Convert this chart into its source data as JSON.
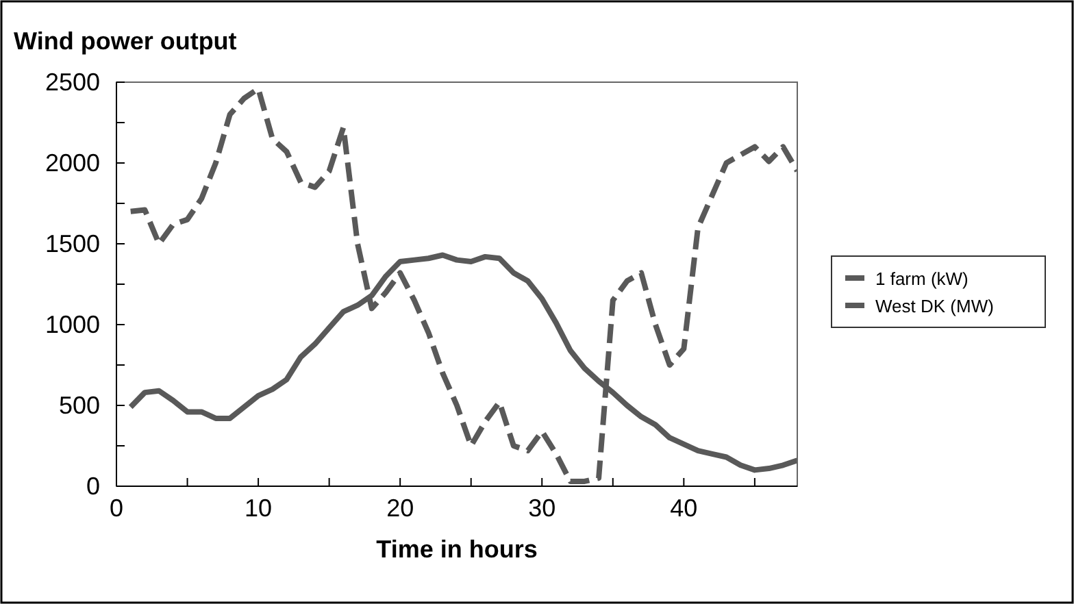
{
  "chart_data": {
    "type": "line",
    "title": "Wind power output",
    "xlabel": "Time in hours",
    "x": [
      1,
      2,
      3,
      4,
      5,
      6,
      7,
      8,
      9,
      10,
      11,
      12,
      13,
      14,
      15,
      16,
      17,
      18,
      19,
      20,
      21,
      22,
      23,
      24,
      25,
      26,
      27,
      28,
      29,
      30,
      31,
      32,
      33,
      34,
      35,
      36,
      37,
      38,
      39,
      40,
      41,
      42,
      43,
      44,
      45,
      46,
      47,
      48
    ],
    "series": [
      {
        "name": "1 farm (kW)",
        "color": "#595959",
        "line_style": "dashed",
        "values": [
          1700,
          1710,
          1500,
          1620,
          1650,
          1780,
          2000,
          2300,
          2400,
          2460,
          2150,
          2070,
          1880,
          1850,
          1950,
          2220,
          1500,
          1100,
          1200,
          1320,
          1150,
          950,
          700,
          500,
          250,
          400,
          520,
          250,
          220,
          340,
          200,
          30,
          30,
          50,
          1150,
          1270,
          1320,
          1000,
          750,
          850,
          1600,
          1800,
          2000,
          2050,
          2100,
          2010,
          2100,
          1950
        ]
      },
      {
        "name": "West DK (MW)",
        "color": "#595959",
        "line_style": "solid",
        "values": [
          490,
          580,
          590,
          530,
          460,
          460,
          420,
          420,
          490,
          560,
          600,
          660,
          800,
          880,
          980,
          1080,
          1120,
          1180,
          1300,
          1390,
          1400,
          1410,
          1430,
          1400,
          1390,
          1420,
          1410,
          1320,
          1270,
          1160,
          1010,
          840,
          730,
          650,
          580,
          500,
          430,
          380,
          300,
          260,
          220,
          200,
          180,
          130,
          100,
          110,
          130,
          160
        ]
      }
    ],
    "xlim": [
      0,
      48
    ],
    "xticks": [
      0,
      {
        "value": 5,
        "label": null
      },
      10,
      {
        "value": 15,
        "label": null
      },
      20,
      {
        "value": 25,
        "label": null
      },
      30,
      {
        "value": 35,
        "label": null
      },
      40,
      {
        "value": 45,
        "label": null
      }
    ],
    "ylim": [
      0,
      2500
    ],
    "yticks": [
      0,
      {
        "value": 250,
        "label": null
      },
      500,
      {
        "value": 750,
        "label": null
      },
      1000,
      {
        "value": 1250,
        "label": null
      },
      1500,
      {
        "value": 1750,
        "label": null
      },
      2000,
      {
        "value": 2250,
        "label": null
      },
      2500
    ],
    "grid": false,
    "legend": "right"
  }
}
